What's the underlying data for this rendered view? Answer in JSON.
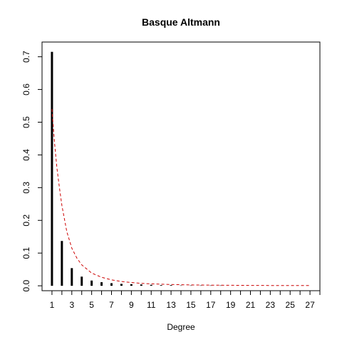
{
  "chart_data": {
    "type": "bar",
    "title": "Basque Altmann",
    "xlabel": "Degree",
    "ylabel": "",
    "xlim": [
      0,
      28
    ],
    "ylim": [
      -0.015,
      0.745
    ],
    "x_ticks": [
      1,
      3,
      5,
      7,
      9,
      11,
      13,
      15,
      17,
      19,
      21,
      23,
      25,
      27
    ],
    "y_ticks": [
      0.0,
      0.1,
      0.2,
      0.3,
      0.4,
      0.5,
      0.6,
      0.7
    ],
    "y_tick_labels": [
      "0.0",
      "0.1",
      "0.2",
      "0.3",
      "0.4",
      "0.5",
      "0.6",
      "0.7"
    ],
    "series": [
      {
        "style": "histogram-spikes",
        "color": "#000000",
        "x": [
          1,
          2,
          3,
          4,
          5,
          6,
          7,
          8,
          9,
          10,
          11,
          12,
          13,
          14,
          15,
          16,
          17,
          18,
          19,
          20,
          21,
          22,
          23,
          24,
          25,
          26,
          27
        ],
        "y": [
          0.715,
          0.137,
          0.054,
          0.028,
          0.016,
          0.011,
          0.008,
          0.006,
          0.005,
          0.004,
          0.003,
          0.002,
          0.002,
          0.001,
          0.001,
          0.001,
          0.001,
          0.001,
          0.0,
          0.0,
          0.0,
          0.0,
          0.0,
          0.0,
          0.0,
          0.0,
          0.0
        ]
      },
      {
        "style": "dashed-line",
        "color": "#cc0000",
        "x": [
          1,
          1.25,
          1.5,
          1.75,
          2,
          2.5,
          3,
          3.5,
          4,
          5,
          6,
          7,
          8,
          9,
          10,
          11,
          12,
          13,
          14,
          15,
          17,
          19,
          21,
          23,
          25,
          27
        ],
        "y": [
          0.54,
          0.44,
          0.36,
          0.3,
          0.245,
          0.165,
          0.115,
          0.085,
          0.064,
          0.039,
          0.026,
          0.018,
          0.013,
          0.01,
          0.0075,
          0.006,
          0.0048,
          0.0039,
          0.0032,
          0.0027,
          0.002,
          0.0015,
          0.0011,
          0.0009,
          0.0007,
          0.0006
        ]
      }
    ]
  }
}
